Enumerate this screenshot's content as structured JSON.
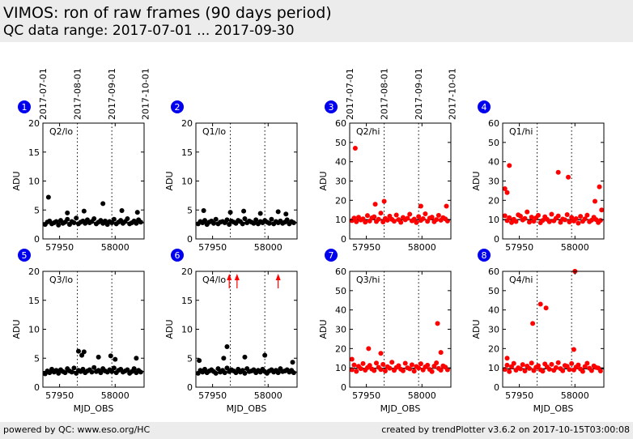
{
  "header": {
    "title": "VIMOS: ron of raw frames (90 days period)",
    "subtitle": "QC data range: 2017-07-01 ... 2017-09-30"
  },
  "footer": {
    "left": "powered by QC: www.eso.org/HC",
    "right": "created by trendPlotter v3.6.2 on 2017-10-15T03:00:08"
  },
  "colors": {
    "black_series": "#000000",
    "red_series": "#ff0000",
    "badge": "#0000ee",
    "header_bg": "#ececec"
  },
  "chart_data": [
    {
      "type": "scatter",
      "index": "1",
      "panel_label": "Q2/lo",
      "color": "#000000",
      "ylim": [
        0,
        20
      ],
      "yticks": [
        0,
        5,
        10,
        15,
        20
      ],
      "ylabel": "ADU",
      "xlim": [
        57935,
        58026
      ],
      "xticks": [
        57950,
        58000
      ],
      "date_ticks": [
        "2017-07-01",
        "2017-08-01",
        "2017-09-01",
        "2017-10-01"
      ],
      "date_tick_mjd": [
        57935,
        57966,
        57997,
        58027
      ],
      "ref_line": 2.8,
      "outlier_arrows": [],
      "x": [
        57937,
        57939,
        57941,
        57943,
        57945,
        57947,
        57949,
        57951,
        57953,
        57955,
        57957,
        57959,
        57961,
        57963,
        57965,
        57967,
        57969,
        57971,
        57973,
        57975,
        57977,
        57979,
        57981,
        57983,
        57985,
        57987,
        57989,
        57991,
        57993,
        57995,
        57997,
        57999,
        58001,
        58003,
        58005,
        58007,
        58009,
        58011,
        58013,
        58015,
        58017,
        58019,
        58021,
        58023,
        57940,
        57957,
        57972,
        57989,
        58006,
        58020
      ],
      "y": [
        2.5,
        2.9,
        3.1,
        2.6,
        2.8,
        3.0,
        2.4,
        3.2,
        2.7,
        2.9,
        3.4,
        2.5,
        3.0,
        2.8,
        3.6,
        2.6,
        2.9,
        3.1,
        2.7,
        3.3,
        2.8,
        3.0,
        3.5,
        2.6,
        2.9,
        3.2,
        2.7,
        3.1,
        2.5,
        3.0,
        2.8,
        3.4,
        2.6,
        2.9,
        3.2,
        2.7,
        3.0,
        3.5,
        2.6,
        2.8,
        3.1,
        2.7,
        3.3,
        2.9,
        7.2,
        4.5,
        4.8,
        6.1,
        4.9,
        4.6
      ]
    },
    {
      "type": "scatter",
      "index": "2",
      "panel_label": "Q1/lo",
      "color": "#000000",
      "ylim": [
        0,
        20
      ],
      "yticks": [
        0,
        5,
        10,
        15,
        20
      ],
      "ylabel": "ADU",
      "xlim": [
        57935,
        58026
      ],
      "xticks": [
        57950,
        58000
      ],
      "date_ticks": [],
      "date_tick_mjd": [
        57935,
        57966,
        57997,
        58027
      ],
      "ref_line": 2.8,
      "outlier_arrows": [],
      "x": [
        57937,
        57939,
        57941,
        57943,
        57945,
        57947,
        57949,
        57951,
        57953,
        57955,
        57957,
        57959,
        57961,
        57963,
        57965,
        57967,
        57969,
        57971,
        57973,
        57975,
        57977,
        57979,
        57981,
        57983,
        57985,
        57987,
        57989,
        57991,
        57993,
        57995,
        57997,
        57999,
        58001,
        58003,
        58005,
        58007,
        58009,
        58011,
        58013,
        58015,
        58017,
        58019,
        58021,
        58023,
        57942,
        57966,
        57978,
        57993,
        58009,
        58016
      ],
      "y": [
        2.6,
        3.0,
        2.8,
        3.2,
        2.5,
        2.9,
        3.1,
        2.7,
        3.4,
        2.6,
        2.9,
        3.0,
        2.8,
        3.3,
        2.5,
        3.1,
        2.9,
        2.7,
        3.2,
        3.0,
        2.6,
        3.5,
        2.8,
        3.1,
        2.9,
        2.7,
        3.3,
        2.6,
        3.0,
        2.8,
        3.2,
        2.9,
        2.7,
        3.4,
        2.6,
        3.0,
        2.8,
        3.1,
        2.7,
        2.9,
        3.3,
        2.6,
        3.0,
        2.8,
        4.9,
        4.6,
        4.8,
        4.4,
        4.7,
        4.3
      ]
    },
    {
      "type": "scatter",
      "index": "3",
      "panel_label": "Q2/hi",
      "color": "#ff0000",
      "ylim": [
        0,
        60
      ],
      "yticks": [
        0,
        10,
        20,
        30,
        40,
        50,
        60
      ],
      "ylabel": "ADU",
      "xlim": [
        57935,
        58026
      ],
      "xticks": [
        57950,
        58000
      ],
      "date_ticks": [
        "2017-07-01",
        "2017-08-01",
        "2017-09-01",
        "2017-10-01"
      ],
      "date_tick_mjd": [
        57935,
        57966,
        57997,
        58027
      ],
      "ref_line": 10,
      "outlier_arrows": [],
      "x": [
        57937,
        57939,
        57941,
        57943,
        57945,
        57947,
        57949,
        57951,
        57953,
        57955,
        57957,
        57959,
        57961,
        57963,
        57965,
        57967,
        57969,
        57971,
        57973,
        57975,
        57977,
        57979,
        57981,
        57983,
        57985,
        57987,
        57989,
        57991,
        57993,
        57995,
        57997,
        57999,
        58001,
        58003,
        58005,
        58007,
        58009,
        58011,
        58013,
        58015,
        58017,
        58019,
        58021,
        58023,
        57940,
        57958,
        57966,
        57999,
        58022
      ],
      "y": [
        9.5,
        10.8,
        8.9,
        11.2,
        9.8,
        10.4,
        8.7,
        12.1,
        9.3,
        10.9,
        11.5,
        9.0,
        10.2,
        13.4,
        8.8,
        10.6,
        9.7,
        11.8,
        10.1,
        9.2,
        12.4,
        10.0,
        8.6,
        11.1,
        9.9,
        10.7,
        12.8,
        9.4,
        10.3,
        8.5,
        11.6,
        9.6,
        10.5,
        13.0,
        9.1,
        10.8,
        11.3,
        8.9,
        10.0,
        12.2,
        9.7,
        11.0,
        10.4,
        9.3,
        47,
        18,
        19.5,
        17,
        17
      ]
    },
    {
      "type": "scatter",
      "index": "4",
      "panel_label": "Q1/hi",
      "color": "#ff0000",
      "ylim": [
        0,
        60
      ],
      "yticks": [
        0,
        10,
        20,
        30,
        40,
        50,
        60
      ],
      "ylabel": "ADU",
      "xlim": [
        57935,
        58026
      ],
      "xticks": [
        57950,
        58000
      ],
      "date_ticks": [],
      "date_tick_mjd": [
        57935,
        57966,
        57997,
        58027
      ],
      "ref_line": 10,
      "outlier_arrows": [],
      "x": [
        57937,
        57939,
        57941,
        57943,
        57945,
        57947,
        57949,
        57951,
        57953,
        57955,
        57957,
        57959,
        57961,
        57963,
        57965,
        57967,
        57969,
        57971,
        57973,
        57975,
        57977,
        57979,
        57981,
        57983,
        57985,
        57987,
        57989,
        57991,
        57993,
        57995,
        57997,
        57999,
        58001,
        58003,
        58005,
        58007,
        58009,
        58011,
        58013,
        58015,
        58017,
        58019,
        58021,
        58023,
        57937,
        57939,
        57941,
        57985,
        57994,
        58018,
        58022,
        58024
      ],
      "y": [
        12,
        9.5,
        11,
        8.5,
        10.2,
        9,
        12.5,
        11.8,
        9.8,
        10.6,
        14,
        8.7,
        11.3,
        9.2,
        10.9,
        12.2,
        8.4,
        9.6,
        11.5,
        10.1,
        8.9,
        12.8,
        9.4,
        10.7,
        11.9,
        8.6,
        10.3,
        9.9,
        12.6,
        8.8,
        11.1,
        9.3,
        10.5,
        8.2,
        11.7,
        9.1,
        10.4,
        12.3,
        8.9,
        9.7,
        11.2,
        10.0,
        8.5,
        9.6,
        26,
        24,
        38,
        34.5,
        32,
        19.5,
        27,
        15
      ]
    },
    {
      "type": "scatter",
      "index": "5",
      "panel_label": "Q3/lo",
      "color": "#000000",
      "ylim": [
        0,
        20
      ],
      "yticks": [
        0,
        5,
        10,
        15,
        20
      ],
      "ylabel": "ADU",
      "xlim": [
        57935,
        58026
      ],
      "xticks": [
        57950,
        58000
      ],
      "date_ticks": [],
      "date_tick_mjd": [
        57935,
        57966,
        57997,
        58027
      ],
      "ref_line": 2.7,
      "outlier_arrows": [],
      "x": [
        57937,
        57939,
        57941,
        57943,
        57945,
        57947,
        57949,
        57951,
        57953,
        57955,
        57957,
        57959,
        57961,
        57963,
        57965,
        57967,
        57969,
        57971,
        57973,
        57975,
        57977,
        57979,
        57981,
        57983,
        57985,
        57987,
        57989,
        57991,
        57993,
        57995,
        57997,
        57999,
        58001,
        58003,
        58005,
        58007,
        58009,
        58011,
        58013,
        58015,
        58017,
        58019,
        58021,
        58023,
        57967,
        57970,
        57972,
        57985,
        57996,
        58000,
        58019
      ],
      "y": [
        2.3,
        2.8,
        2.5,
        3.1,
        2.6,
        2.9,
        2.4,
        3.0,
        2.7,
        2.5,
        3.2,
        2.8,
        2.6,
        3.3,
        2.4,
        2.9,
        2.7,
        3.1,
        2.5,
        2.8,
        3.0,
        2.6,
        3.4,
        2.7,
        2.9,
        2.5,
        3.2,
        2.8,
        2.6,
        3.0,
        2.7,
        3.3,
        2.5,
        2.9,
        3.1,
        2.6,
        2.8,
        3.0,
        2.4,
        2.7,
        3.2,
        2.5,
        2.9,
        2.6,
        6.2,
        5.5,
        6.1,
        5.2,
        5.4,
        4.8,
        5.0
      ]
    },
    {
      "type": "scatter",
      "index": "6",
      "panel_label": "Q4/lo",
      "color": "#000000",
      "ylim": [
        0,
        20
      ],
      "yticks": [
        0,
        5,
        10,
        15,
        20
      ],
      "ylabel": "ADU",
      "xlim": [
        57935,
        58026
      ],
      "xticks": [
        57950,
        58000
      ],
      "date_ticks": [],
      "date_tick_mjd": [
        57935,
        57966,
        57997,
        58027
      ],
      "ref_line": 2.6,
      "outlier_arrows": [
        57965,
        57972,
        58009
      ],
      "x": [
        57937,
        57939,
        57941,
        57943,
        57945,
        57947,
        57949,
        57951,
        57953,
        57955,
        57957,
        57959,
        57961,
        57963,
        57965,
        57967,
        57969,
        57971,
        57973,
        57975,
        57977,
        57979,
        57981,
        57983,
        57985,
        57987,
        57989,
        57991,
        57993,
        57995,
        57997,
        57999,
        58001,
        58003,
        58005,
        58007,
        58009,
        58011,
        58013,
        58015,
        58017,
        58019,
        58021,
        58023,
        57938,
        57960,
        57963,
        57979,
        57997,
        58022
      ],
      "y": [
        2.4,
        2.9,
        2.6,
        3.1,
        2.5,
        2.8,
        3.0,
        2.7,
        2.4,
        3.2,
        2.6,
        2.9,
        2.5,
        3.3,
        2.7,
        3.0,
        2.8,
        2.5,
        3.1,
        2.6,
        2.9,
        2.4,
        3.2,
        2.7,
        2.8,
        3.0,
        2.5,
        2.9,
        2.6,
        3.1,
        2.7,
        2.4,
        2.8,
        3.0,
        2.6,
        2.9,
        2.5,
        3.2,
        2.7,
        2.8,
        3.0,
        2.6,
        2.9,
        2.5,
        4.6,
        5.0,
        7.0,
        5.2,
        5.5,
        4.3
      ]
    },
    {
      "type": "scatter",
      "index": "7",
      "panel_label": "Q3/hi",
      "color": "#ff0000",
      "ylim": [
        0,
        60
      ],
      "yticks": [
        0,
        10,
        20,
        30,
        40,
        50,
        60
      ],
      "ylabel": "ADU",
      "xlim": [
        57935,
        58026
      ],
      "xticks": [
        57950,
        58000
      ],
      "date_ticks": [],
      "date_tick_mjd": [
        57935,
        57966,
        57997,
        58027
      ],
      "ref_line": 9.8,
      "outlier_arrows": [],
      "x": [
        57937,
        57939,
        57941,
        57943,
        57945,
        57947,
        57949,
        57951,
        57953,
        57955,
        57957,
        57959,
        57961,
        57963,
        57965,
        57967,
        57969,
        57971,
        57973,
        57975,
        57977,
        57979,
        57981,
        57983,
        57985,
        57987,
        57989,
        57991,
        57993,
        57995,
        57997,
        57999,
        58001,
        58003,
        58005,
        58007,
        58009,
        58011,
        58013,
        58015,
        58017,
        58019,
        58021,
        58023,
        57937,
        57952,
        57963,
        58014,
        58017
      ],
      "y": [
        9.0,
        11.5,
        8.2,
        10.8,
        9.6,
        12.2,
        8.8,
        10.1,
        11.3,
        9.4,
        8.6,
        12.5,
        10.3,
        9.1,
        11.8,
        8.4,
        10.6,
        9.8,
        12.9,
        8.7,
        10.2,
        11.1,
        9.3,
        8.5,
        12.4,
        10.0,
        9.5,
        11.6,
        8.3,
        10.7,
        9.9,
        12.1,
        8.9,
        10.5,
        11.4,
        9.2,
        8.1,
        10.9,
        12.6,
        9.7,
        8.8,
        11.0,
        10.4,
        9.0,
        14.5,
        20,
        17.5,
        33,
        18
      ]
    },
    {
      "type": "scatter",
      "index": "8",
      "panel_label": "Q4/hi",
      "color": "#ff0000",
      "ylim": [
        0,
        60
      ],
      "yticks": [
        0,
        10,
        20,
        30,
        40,
        50,
        60
      ],
      "ylabel": "ADU",
      "xlim": [
        57935,
        58026
      ],
      "xticks": [
        57950,
        58000
      ],
      "date_ticks": [],
      "date_tick_mjd": [
        57935,
        57966,
        57997,
        58027
      ],
      "ref_line": 9.5,
      "outlier_arrows": [],
      "x": [
        57937,
        57939,
        57941,
        57943,
        57945,
        57947,
        57949,
        57951,
        57953,
        57955,
        57957,
        57959,
        57961,
        57963,
        57965,
        57967,
        57969,
        57971,
        57973,
        57975,
        57977,
        57979,
        57981,
        57983,
        57985,
        57987,
        57989,
        57991,
        57993,
        57995,
        57997,
        57999,
        58001,
        58003,
        58005,
        58007,
        58009,
        58011,
        58013,
        58015,
        58017,
        58019,
        58021,
        58023,
        57939,
        57962,
        57969,
        57974,
        57999,
        58000
      ],
      "y": [
        9.2,
        11.4,
        8.1,
        10.6,
        12.3,
        8.8,
        10.0,
        9.5,
        11.7,
        8.4,
        10.9,
        9.7,
        12.5,
        8.6,
        10.3,
        11.1,
        9.0,
        8.3,
        12.0,
        10.5,
        9.3,
        11.8,
        8.7,
        10.1,
        12.7,
        9.6,
        8.5,
        11.2,
        10.8,
        9.1,
        12.2,
        8.9,
        10.4,
        11.5,
        9.4,
        8.2,
        10.7,
        12.4,
        9.8,
        8.6,
        11.0,
        10.2,
        9.9,
        8.4,
        15,
        33,
        43,
        41,
        19.5,
        60
      ]
    }
  ]
}
